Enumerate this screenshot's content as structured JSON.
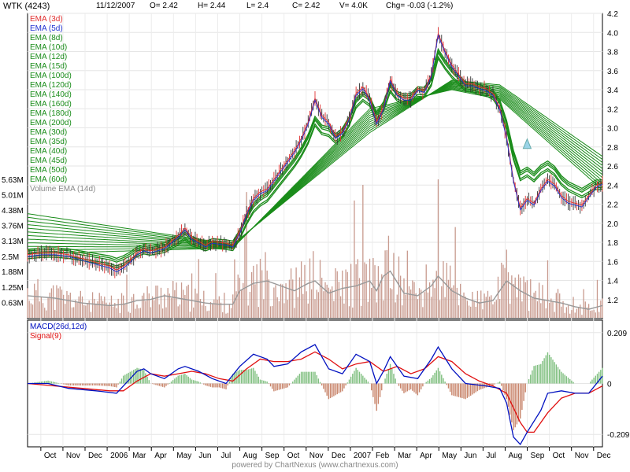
{
  "header": {
    "symbol": "WTK (4243)",
    "date": "11/12/2007",
    "open": "O= 2.42",
    "high": "H= 2.44",
    "low": "L= 2.4",
    "close": "C= 2.42",
    "volume": "V= 4.0K",
    "change": "Chg= -0.03 (-1.2%)"
  },
  "footer": {
    "text": "powered by ChartNexus (www.chartnexus.com)"
  },
  "colors": {
    "ema_short_1": "#e03030",
    "ema_short_2": "#2030d0",
    "ema_group": "#1a8c1a",
    "volume_bar": "#c89a8e",
    "volume_ema": "#999999",
    "macd": "#0010c0",
    "signal": "#e01010",
    "hist_pos": "#7fbf7f",
    "hist_neg": "#c8846a",
    "hover_marker": "#9bd4e8"
  },
  "chart_data": [
    {
      "type": "line",
      "title": "WTK (4243)",
      "legend_placement": "top-left",
      "grid": true,
      "y_axis_side": "right",
      "ylim": [
        1.0,
        4.2
      ],
      "y_ticks": [
        "1.2",
        "1.4",
        "1.6",
        "1.8",
        "2.0",
        "2.2",
        "2.4",
        "2.6",
        "2.8",
        "3.0",
        "3.2",
        "3.4",
        "3.6",
        "3.8",
        "4.0",
        "4.2"
      ],
      "x_ticks": [
        "Oct",
        "Nov",
        "Dec",
        "2006",
        "Mar",
        "Apr",
        "May",
        "Jun",
        "Jul",
        "Aug",
        "Sep",
        "Oct",
        "Nov",
        "Dec",
        "2007",
        "Feb",
        "Mar",
        "Apr",
        "May",
        "Jun",
        "Jul",
        "Aug",
        "Sep",
        "Oct",
        "Nov",
        "Dec"
      ],
      "legend": [
        "EMA (3d)",
        "EMA (5d)",
        "EMA (8d)",
        "EMA (10d)",
        "EMA (12d)",
        "EMA (15d)",
        "EMA (100d)",
        "EMA (120d)",
        "EMA (140d)",
        "EMA (160d)",
        "EMA (180d)",
        "EMA (200d)",
        "EMA (30d)",
        "EMA (35d)",
        "EMA (40d)",
        "EMA (45d)",
        "EMA (50d)",
        "EMA (60d)"
      ],
      "price_close": [
        [
          0,
          1.66
        ],
        [
          2,
          1.68
        ],
        [
          4,
          1.68
        ],
        [
          6,
          1.66
        ],
        [
          8,
          1.62
        ],
        [
          10,
          1.58
        ],
        [
          12,
          1.54
        ],
        [
          13,
          1.5
        ],
        [
          14,
          1.54
        ],
        [
          15,
          1.6
        ],
        [
          16,
          1.68
        ],
        [
          17,
          1.72
        ],
        [
          18,
          1.7
        ],
        [
          20,
          1.74
        ],
        [
          22,
          1.86
        ],
        [
          23,
          1.94
        ],
        [
          24,
          1.84
        ],
        [
          25,
          1.8
        ],
        [
          26,
          1.76
        ],
        [
          27,
          1.8
        ],
        [
          28,
          1.79
        ],
        [
          29,
          1.78
        ],
        [
          30,
          1.76
        ],
        [
          31,
          1.9
        ],
        [
          32,
          2.1
        ],
        [
          33,
          2.25
        ],
        [
          34,
          2.32
        ],
        [
          35,
          2.35
        ],
        [
          36,
          2.45
        ],
        [
          37,
          2.55
        ],
        [
          38,
          2.65
        ],
        [
          39,
          2.75
        ],
        [
          40,
          2.88
        ],
        [
          41,
          3.05
        ],
        [
          42,
          3.3
        ],
        [
          43,
          3.12
        ],
        [
          44,
          3.05
        ],
        [
          45,
          2.9
        ],
        [
          46,
          2.95
        ],
        [
          47,
          3.1
        ],
        [
          48,
          3.35
        ],
        [
          49,
          3.42
        ],
        [
          50,
          3.3
        ],
        [
          51,
          3.05
        ],
        [
          52,
          3.2
        ],
        [
          53,
          3.5
        ],
        [
          54,
          3.35
        ],
        [
          55,
          3.3
        ],
        [
          56,
          3.3
        ],
        [
          57,
          3.4
        ],
        [
          58,
          3.38
        ],
        [
          59,
          3.55
        ],
        [
          60,
          3.98
        ],
        [
          61,
          3.8
        ],
        [
          62,
          3.65
        ],
        [
          63,
          3.55
        ],
        [
          64,
          3.45
        ],
        [
          65,
          3.45
        ],
        [
          66,
          3.42
        ],
        [
          67,
          3.4
        ],
        [
          68,
          3.35
        ],
        [
          69,
          3.2
        ],
        [
          70,
          2.9
        ],
        [
          71,
          2.45
        ],
        [
          72,
          2.15
        ],
        [
          73,
          2.25
        ],
        [
          74,
          2.2
        ],
        [
          75,
          2.35
        ],
        [
          76,
          2.45
        ],
        [
          77,
          2.4
        ],
        [
          78,
          2.28
        ],
        [
          79,
          2.22
        ],
        [
          80,
          2.2
        ],
        [
          81,
          2.18
        ],
        [
          82,
          2.28
        ],
        [
          83,
          2.38
        ],
        [
          84,
          2.42
        ]
      ],
      "ema_upper_band": [
        [
          0,
          2.1
        ],
        [
          30,
          1.78
        ],
        [
          50,
          2.95
        ],
        [
          62,
          3.5
        ],
        [
          69,
          3.45
        ],
        [
          84,
          2.7
        ]
      ],
      "ema_lower_band": [
        [
          0,
          1.68
        ],
        [
          30,
          1.74
        ],
        [
          50,
          3.2
        ],
        [
          62,
          3.4
        ],
        [
          69,
          3.3
        ],
        [
          84,
          2.35
        ]
      ]
    },
    {
      "type": "bar",
      "title": "Volume EMA (14d)",
      "legend": [
        "Volume EMA (14d)"
      ],
      "y_ticks": [
        "0.63M",
        "1.25M",
        "1.88M",
        "2.5M",
        "3.13M",
        "3.76M",
        "4.38M",
        "5.01M",
        "5.63M"
      ],
      "ylim": [
        0,
        5.63
      ],
      "volume_ema": [
        [
          0,
          0.9
        ],
        [
          4,
          0.8
        ],
        [
          8,
          0.6
        ],
        [
          12,
          0.5
        ],
        [
          14,
          0.55
        ],
        [
          16,
          0.7
        ],
        [
          18,
          0.75
        ],
        [
          20,
          0.9
        ],
        [
          22,
          0.8
        ],
        [
          24,
          0.7
        ],
        [
          26,
          0.6
        ],
        [
          28,
          0.55
        ],
        [
          30,
          0.55
        ],
        [
          31,
          1.1
        ],
        [
          33,
          1.4
        ],
        [
          35,
          1.5
        ],
        [
          37,
          1.3
        ],
        [
          39,
          1.1
        ],
        [
          41,
          1.4
        ],
        [
          42,
          1.5
        ],
        [
          44,
          1.0
        ],
        [
          46,
          1.2
        ],
        [
          48,
          1.3
        ],
        [
          50,
          1.5
        ],
        [
          51,
          1.1
        ],
        [
          52,
          1.7
        ],
        [
          53,
          1.9
        ],
        [
          55,
          1.0
        ],
        [
          57,
          0.9
        ],
        [
          59,
          1.3
        ],
        [
          60,
          1.7
        ],
        [
          62,
          1.1
        ],
        [
          64,
          0.8
        ],
        [
          66,
          0.6
        ],
        [
          68,
          0.7
        ],
        [
          70,
          1.5
        ],
        [
          72,
          1.1
        ],
        [
          74,
          0.8
        ],
        [
          76,
          0.7
        ],
        [
          78,
          0.6
        ],
        [
          80,
          0.45
        ],
        [
          82,
          0.35
        ],
        [
          84,
          0.5
        ]
      ]
    },
    {
      "type": "line",
      "title": "MACD(26d,12d)",
      "legend": [
        "MACD(26d,12d)",
        "Signal(9)"
      ],
      "y_ticks": [
        "0.209",
        "0",
        "-0.209"
      ],
      "ylim": [
        -0.26,
        0.26
      ],
      "macd": [
        [
          0,
          0.0
        ],
        [
          3,
          0.0
        ],
        [
          6,
          -0.02
        ],
        [
          10,
          -0.03
        ],
        [
          13,
          -0.04
        ],
        [
          14,
          -0.01
        ],
        [
          16,
          0.05
        ],
        [
          17,
          0.06
        ],
        [
          18,
          0.04
        ],
        [
          20,
          0.02
        ],
        [
          22,
          0.06
        ],
        [
          23,
          0.07
        ],
        [
          25,
          0.05
        ],
        [
          27,
          0.02
        ],
        [
          29,
          0.0
        ],
        [
          31,
          0.07
        ],
        [
          33,
          0.12
        ],
        [
          35,
          0.1
        ],
        [
          36,
          0.07
        ],
        [
          38,
          0.08
        ],
        [
          40,
          0.13
        ],
        [
          42,
          0.16
        ],
        [
          44,
          0.06
        ],
        [
          46,
          0.04
        ],
        [
          48,
          0.12
        ],
        [
          50,
          0.09
        ],
        [
          51,
          0.0
        ],
        [
          52,
          0.05
        ],
        [
          53,
          0.11
        ],
        [
          55,
          0.03
        ],
        [
          57,
          0.02
        ],
        [
          59,
          0.1
        ],
        [
          60,
          0.15
        ],
        [
          62,
          0.06
        ],
        [
          64,
          0.0
        ],
        [
          67,
          -0.01
        ],
        [
          69,
          -0.02
        ],
        [
          70,
          -0.08
        ],
        [
          71,
          -0.22
        ],
        [
          72,
          -0.25
        ],
        [
          73,
          -0.2
        ],
        [
          75,
          -0.11
        ],
        [
          76,
          -0.04
        ],
        [
          78,
          -0.03
        ],
        [
          80,
          -0.04
        ],
        [
          82,
          -0.04
        ],
        [
          84,
          0.03
        ]
      ],
      "signal": [
        [
          0,
          0.0
        ],
        [
          4,
          -0.01
        ],
        [
          8,
          -0.02
        ],
        [
          12,
          -0.03
        ],
        [
          14,
          -0.03
        ],
        [
          16,
          0.01
        ],
        [
          18,
          0.04
        ],
        [
          20,
          0.03
        ],
        [
          22,
          0.04
        ],
        [
          24,
          0.05
        ],
        [
          26,
          0.04
        ],
        [
          28,
          0.02
        ],
        [
          30,
          0.01
        ],
        [
          32,
          0.06
        ],
        [
          34,
          0.1
        ],
        [
          36,
          0.09
        ],
        [
          38,
          0.09
        ],
        [
          40,
          0.1
        ],
        [
          42,
          0.13
        ],
        [
          44,
          0.1
        ],
        [
          46,
          0.06
        ],
        [
          48,
          0.08
        ],
        [
          50,
          0.09
        ],
        [
          52,
          0.05
        ],
        [
          54,
          0.07
        ],
        [
          56,
          0.04
        ],
        [
          58,
          0.06
        ],
        [
          60,
          0.11
        ],
        [
          62,
          0.09
        ],
        [
          64,
          0.04
        ],
        [
          66,
          0.01
        ],
        [
          68,
          -0.01
        ],
        [
          70,
          -0.04
        ],
        [
          72,
          -0.16
        ],
        [
          73,
          -0.2
        ],
        [
          74,
          -0.2
        ],
        [
          76,
          -0.12
        ],
        [
          78,
          -0.06
        ],
        [
          80,
          -0.04
        ],
        [
          82,
          -0.04
        ],
        [
          84,
          -0.01
        ]
      ]
    }
  ]
}
